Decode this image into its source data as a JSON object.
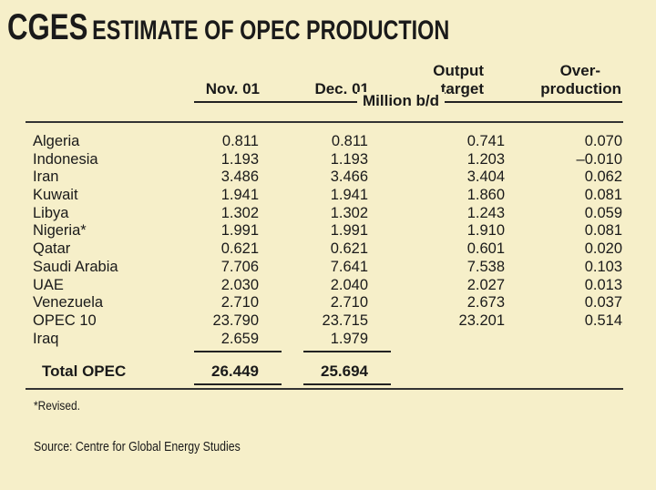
{
  "title": {
    "lead": "CGES",
    "rest": "ESTIMATE OF OPEC PRODUCTION"
  },
  "headers": {
    "nov": "Nov. 01",
    "dec": "Dec. 01",
    "target_line1": "Output",
    "target_line2": "target",
    "over_line1": "Over-",
    "over_line2": "production",
    "unit": "Million b/d"
  },
  "rows": [
    {
      "country": "Algeria",
      "nov": "0.811",
      "dec": "0.811",
      "target": "0.741",
      "over": "0.070"
    },
    {
      "country": "Indonesia",
      "nov": "1.193",
      "dec": "1.193",
      "target": "1.203",
      "over": "–0.010"
    },
    {
      "country": "Iran",
      "nov": "3.486",
      "dec": "3.466",
      "target": "3.404",
      "over": "0.062"
    },
    {
      "country": "Kuwait",
      "nov": "1.941",
      "dec": "1.941",
      "target": "1.860",
      "over": "0.081"
    },
    {
      "country": "Libya",
      "nov": "1.302",
      "dec": "1.302",
      "target": "1.243",
      "over": "0.059"
    },
    {
      "country": "Nigeria*",
      "nov": "1.991",
      "dec": "1.991",
      "target": "1.910",
      "over": "0.081"
    },
    {
      "country": "Qatar",
      "nov": "0.621",
      "dec": "0.621",
      "target": "0.601",
      "over": "0.020"
    },
    {
      "country": "Saudi Arabia",
      "nov": "7.706",
      "dec": "7.641",
      "target": "7.538",
      "over": "0.103"
    },
    {
      "country": "UAE",
      "nov": "2.030",
      "dec": "2.040",
      "target": "2.027",
      "over": "0.013"
    },
    {
      "country": "Venezuela",
      "nov": "2.710",
      "dec": "2.710",
      "target": "2.673",
      "over": "0.037"
    },
    {
      "country": "OPEC 10",
      "nov": "23.790",
      "dec": "23.715",
      "target": "23.201",
      "over": "0.514"
    },
    {
      "country": "Iraq",
      "nov": "2.659",
      "dec": "1.979",
      "target": "",
      "over": ""
    }
  ],
  "total": {
    "label": "Total OPEC",
    "nov": "26.449",
    "dec": "25.694"
  },
  "footnote": "*Revised.",
  "source": "Source: Centre for Global Energy Studies",
  "colors": {
    "background": "#f6efc9",
    "text": "#1a1a1a"
  }
}
